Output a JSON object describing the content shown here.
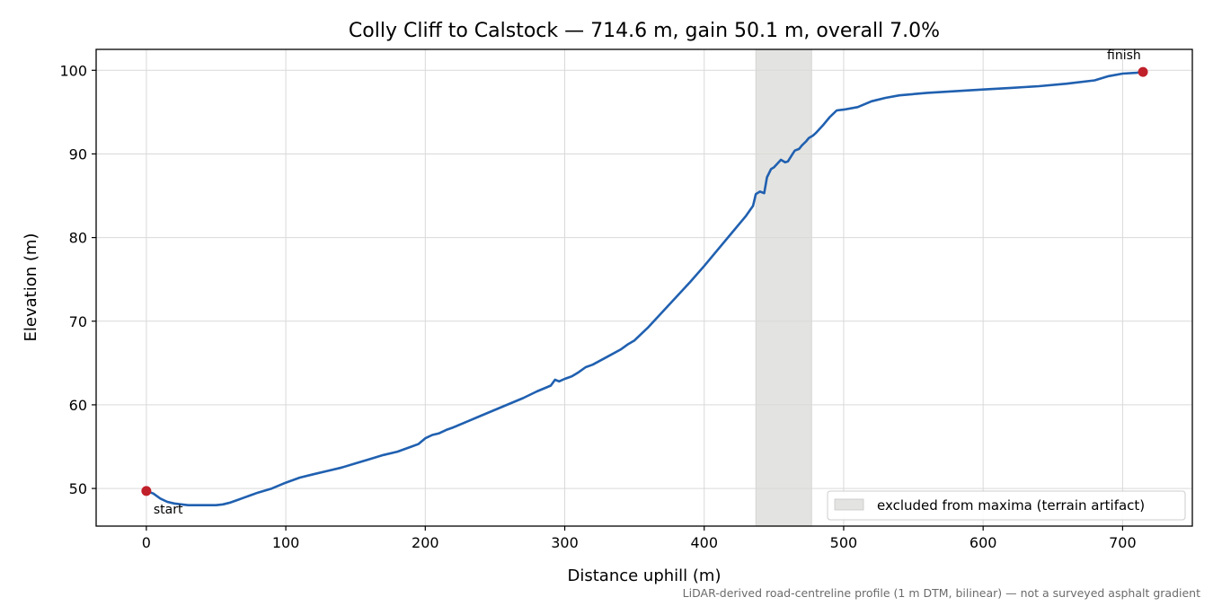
{
  "chart_data": {
    "type": "line",
    "title": "Colly Cliff to Calstock — 714.6 m, gain 50.1 m, overall 7.0%",
    "xlabel": "Distance uphill (m)",
    "ylabel": "Elevation (m)",
    "xlim": [
      -36,
      750
    ],
    "ylim": [
      45.5,
      102.5
    ],
    "xticks": [
      0,
      100,
      200,
      300,
      400,
      500,
      600,
      700
    ],
    "yticks": [
      50,
      60,
      70,
      80,
      90,
      100
    ],
    "grid": true,
    "line_color": "#2060b0",
    "series": [
      {
        "x": [
          0,
          5,
          10,
          15,
          20,
          25,
          30,
          40,
          50,
          55,
          60,
          65,
          70,
          75,
          80,
          90,
          100,
          110,
          120,
          130,
          140,
          150,
          160,
          170,
          180,
          190,
          195,
          200,
          205,
          210,
          215,
          220,
          230,
          240,
          250,
          260,
          270,
          280,
          290,
          293,
          296,
          300,
          305,
          310,
          315,
          320,
          330,
          340,
          345,
          350,
          360,
          370,
          380,
          390,
          400,
          410,
          420,
          430,
          435,
          437,
          440,
          443,
          445,
          448,
          450,
          455,
          458,
          460,
          463,
          465,
          468,
          470,
          473,
          475,
          478,
          480,
          485,
          490,
          495,
          500,
          510,
          520,
          530,
          540,
          560,
          580,
          600,
          620,
          640,
          660,
          680,
          690,
          700,
          710,
          714.6
        ],
        "values": [
          49.7,
          49.4,
          48.8,
          48.4,
          48.2,
          48.1,
          48.0,
          48.0,
          48.0,
          48.1,
          48.3,
          48.6,
          48.9,
          49.2,
          49.5,
          50.0,
          50.7,
          51.3,
          51.7,
          52.1,
          52.5,
          53.0,
          53.5,
          54.0,
          54.4,
          55.0,
          55.3,
          56.0,
          56.4,
          56.6,
          57.0,
          57.3,
          58.0,
          58.7,
          59.4,
          60.1,
          60.8,
          61.6,
          62.3,
          63.0,
          62.8,
          63.1,
          63.4,
          63.9,
          64.5,
          64.8,
          65.7,
          66.6,
          67.2,
          67.7,
          69.3,
          71.1,
          72.9,
          74.7,
          76.6,
          78.6,
          80.6,
          82.6,
          83.8,
          85.2,
          85.5,
          85.3,
          87.2,
          88.2,
          88.4,
          89.3,
          89.0,
          89.1,
          89.9,
          90.4,
          90.6,
          91.0,
          91.5,
          91.9,
          92.2,
          92.5,
          93.4,
          94.4,
          95.2,
          95.3,
          95.6,
          96.3,
          96.7,
          97.0,
          97.3,
          97.5,
          97.7,
          97.9,
          98.1,
          98.4,
          98.8,
          99.3,
          99.6,
          99.7,
          99.8
        ]
      }
    ],
    "points": [
      {
        "label": "start",
        "x": 0,
        "y": 49.7,
        "color": "#c0202a"
      },
      {
        "label": "finish",
        "x": 714.6,
        "y": 99.8,
        "color": "#c0202a"
      }
    ],
    "shaded_region": {
      "x_start": 437,
      "x_end": 477,
      "label": "excluded from maxima (terrain artifact)",
      "color": "#e3e3e1"
    },
    "legend_position": "lower-right",
    "footnote": "LiDAR-derived road-centreline profile (1 m DTM, bilinear) — not a surveyed asphalt gradient"
  }
}
